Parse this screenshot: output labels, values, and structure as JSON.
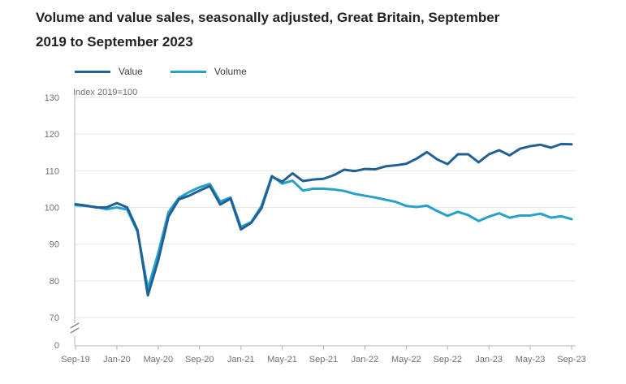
{
  "chart_data": {
    "type": "line",
    "title": "Volume and value sales, seasonally adjusted, Great Britain, September 2019 to September 2023",
    "ylabel": "Index 2019=100",
    "xlabel": "",
    "ylim": [
      0,
      130
    ],
    "y_ticks": [
      0,
      70,
      80,
      90,
      100,
      110,
      120,
      130
    ],
    "y_axis_break": "between 0 and 70",
    "grid": true,
    "legend_position": "top-left",
    "x_labels": [
      "Sep-19",
      "Jan-20",
      "May-20",
      "Sep-20",
      "Jan-21",
      "May-21",
      "Sep-21",
      "Jan-22",
      "May-22",
      "Sep-22",
      "Jan-23",
      "May-23",
      "Sep-23"
    ],
    "x": [
      "Sep-19",
      "Oct-19",
      "Nov-19",
      "Dec-19",
      "Jan-20",
      "Feb-20",
      "Mar-20",
      "Apr-20",
      "May-20",
      "Jun-20",
      "Jul-20",
      "Aug-20",
      "Sep-20",
      "Oct-20",
      "Nov-20",
      "Dec-20",
      "Jan-21",
      "Feb-21",
      "Mar-21",
      "Apr-21",
      "May-21",
      "Jun-21",
      "Jul-21",
      "Aug-21",
      "Sep-21",
      "Oct-21",
      "Nov-21",
      "Dec-21",
      "Jan-22",
      "Feb-22",
      "Mar-22",
      "Apr-22",
      "May-22",
      "Jun-22",
      "Jul-22",
      "Aug-22",
      "Sep-22",
      "Oct-22",
      "Nov-22",
      "Dec-22",
      "Jan-23",
      "Feb-23",
      "Mar-23",
      "Apr-23",
      "May-23",
      "Jun-23",
      "Jul-23",
      "Aug-23",
      "Sep-23"
    ],
    "series": [
      {
        "name": "Value",
        "color": "#206095",
        "values": [
          100.9,
          100.5,
          100.0,
          100.0,
          101.2,
          100.0,
          93.8,
          76.0,
          85.5,
          97.5,
          102.2,
          103.2,
          104.6,
          105.8,
          100.8,
          102.4,
          94.0,
          95.8,
          99.8,
          108.4,
          107.0,
          109.3,
          107.2,
          107.6,
          107.8,
          108.8,
          110.3,
          109.9,
          110.5,
          110.4,
          111.2,
          111.5,
          111.9,
          113.3,
          115.1,
          113.1,
          111.8,
          114.5,
          114.5,
          112.3,
          114.5,
          115.6,
          114.2,
          116.0,
          116.7,
          117.1,
          116.3,
          117.3,
          117.2
        ]
      },
      {
        "name": "Volume",
        "color": "#27a0cc",
        "values": [
          100.6,
          100.4,
          100.1,
          99.5,
          100.0,
          99.4,
          93.4,
          77.8,
          87.5,
          98.7,
          102.6,
          104.2,
          105.5,
          106.4,
          101.6,
          102.7,
          94.7,
          96.0,
          100.4,
          108.6,
          106.5,
          107.3,
          104.6,
          105.1,
          105.1,
          104.9,
          104.5,
          103.7,
          103.2,
          102.7,
          102.1,
          101.5,
          100.4,
          100.1,
          100.5,
          99.0,
          97.7,
          98.8,
          97.9,
          96.3,
          97.5,
          98.4,
          97.2,
          97.8,
          97.8,
          98.3,
          97.2,
          97.6,
          96.8
        ]
      }
    ]
  }
}
